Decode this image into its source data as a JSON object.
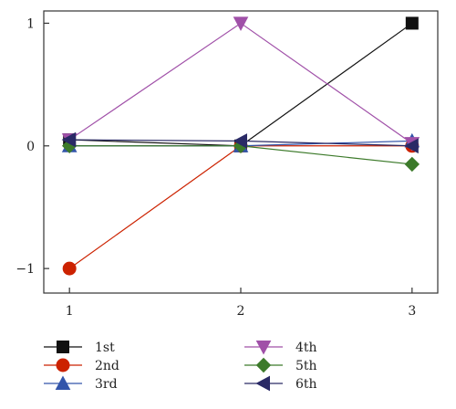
{
  "chart_data": {
    "type": "line",
    "title": "",
    "xlabel": "",
    "ylabel": "",
    "x": [
      1,
      2,
      3
    ],
    "x_ticks": [
      "1",
      "2",
      "3"
    ],
    "y_ticks": [
      "−1",
      "0",
      "1"
    ],
    "y_tick_values": [
      -1,
      0,
      1
    ],
    "xlim": [
      0.85,
      3.15
    ],
    "ylim": [
      -1.2,
      1.1
    ],
    "grid": false,
    "legend_position": "bottom",
    "series": [
      {
        "name": "1st",
        "values": [
          0.05,
          0.0,
          1.0
        ],
        "color": "#111111",
        "marker": "square"
      },
      {
        "name": "2nd",
        "values": [
          -1.0,
          0.0,
          0.0
        ],
        "color": "#cc2200",
        "marker": "circle"
      },
      {
        "name": "3rd",
        "values": [
          0.0,
          0.0,
          0.04
        ],
        "color": "#3355aa",
        "marker": "triangle-up"
      },
      {
        "name": "4th",
        "values": [
          0.05,
          1.0,
          0.02
        ],
        "color": "#a050a8",
        "marker": "triangle-down"
      },
      {
        "name": "5th",
        "values": [
          0.0,
          0.0,
          -0.15
        ],
        "color": "#3c7a2a",
        "marker": "diamond"
      },
      {
        "name": "6th",
        "values": [
          0.05,
          0.04,
          0.0
        ],
        "color": "#2a2a66",
        "marker": "triangle-left"
      }
    ]
  }
}
